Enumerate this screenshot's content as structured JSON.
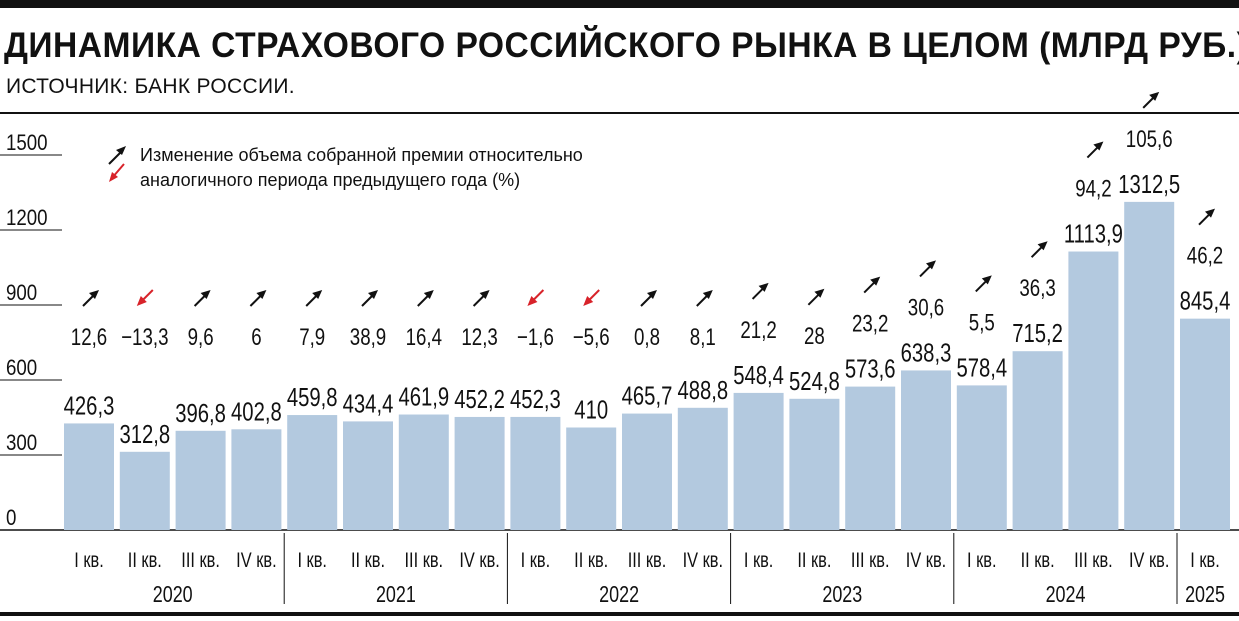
{
  "header": {
    "title": "ДИНАМИКА СТРАХОВОГО РОССИЙСКОГО РЫНКА В ЦЕЛОМ (МЛРД РУБ.)",
    "source": "ИСТОЧНИК: БАНК РОССИИ."
  },
  "legend": {
    "line1": "Изменение объема собранной премии относительно",
    "line2": "аналогичного периода предыдущего года (%)",
    "up_color": "#111111",
    "down_color": "#d8232a"
  },
  "colors": {
    "bar": "#b3c9df",
    "text": "#111111",
    "down_arrow": "#d8232a"
  },
  "chart_data": {
    "type": "bar",
    "title": "ДИНАМИКА СТРАХОВОГО РОССИЙСКОГО РЫНКА В ЦЕЛОМ (МЛРД РУБ.)",
    "ylim": [
      0,
      1500
    ],
    "yticks": [
      "0",
      "300",
      "600",
      "900",
      "1200",
      "1500"
    ],
    "categories": [
      "I кв.",
      "II кв.",
      "III кв.",
      "IV кв.",
      "I кв.",
      "II кв.",
      "III кв.",
      "IV кв.",
      "I кв.",
      "II кв.",
      "III кв.",
      "IV кв.",
      "I кв.",
      "II кв.",
      "III кв.",
      "IV кв.",
      "I кв.",
      "II кв.",
      "III кв.",
      "IV кв.",
      "I кв."
    ],
    "years": [
      {
        "label": "2020",
        "quarters": 4
      },
      {
        "label": "2021",
        "quarters": 4
      },
      {
        "label": "2022",
        "quarters": 4
      },
      {
        "label": "2023",
        "quarters": 4
      },
      {
        "label": "2024",
        "quarters": 4
      },
      {
        "label": "2025",
        "quarters": 1
      }
    ],
    "values": [
      426.3,
      312.8,
      396.8,
      402.8,
      459.8,
      434.4,
      461.9,
      452.2,
      452.3,
      410,
      465.7,
      488.8,
      548.4,
      524.8,
      573.6,
      638.3,
      578.4,
      715.2,
      1113.9,
      1312.5,
      845.4
    ],
    "value_labels": [
      "426,3",
      "312,8",
      "396,8",
      "402,8",
      "459,8",
      "434,4",
      "461,9",
      "452,2",
      "452,3",
      "410",
      "465,7",
      "488,8",
      "548,4",
      "524,8",
      "573,6",
      "638,3",
      "578,4",
      "715,2",
      "1113,9",
      "1312,5",
      "845,4"
    ],
    "change": [
      12.6,
      -13.3,
      9.6,
      6,
      7.9,
      38.9,
      16.4,
      12.3,
      -1.6,
      -5.6,
      0.8,
      8.1,
      21.2,
      28,
      23.2,
      30.6,
      5.5,
      36.3,
      94.2,
      105.6,
      46.2
    ],
    "change_labels": [
      "12,6",
      "−13,3",
      "9,6",
      "6",
      "7,9",
      "38,9",
      "16,4",
      "12,3",
      "−1,6",
      "−5,6",
      "0,8",
      "8,1",
      "21,2",
      "28",
      "23,2",
      "30,6",
      "5,5",
      "36,3",
      "94,2",
      "105,6",
      "46,2"
    ],
    "grid": false
  }
}
